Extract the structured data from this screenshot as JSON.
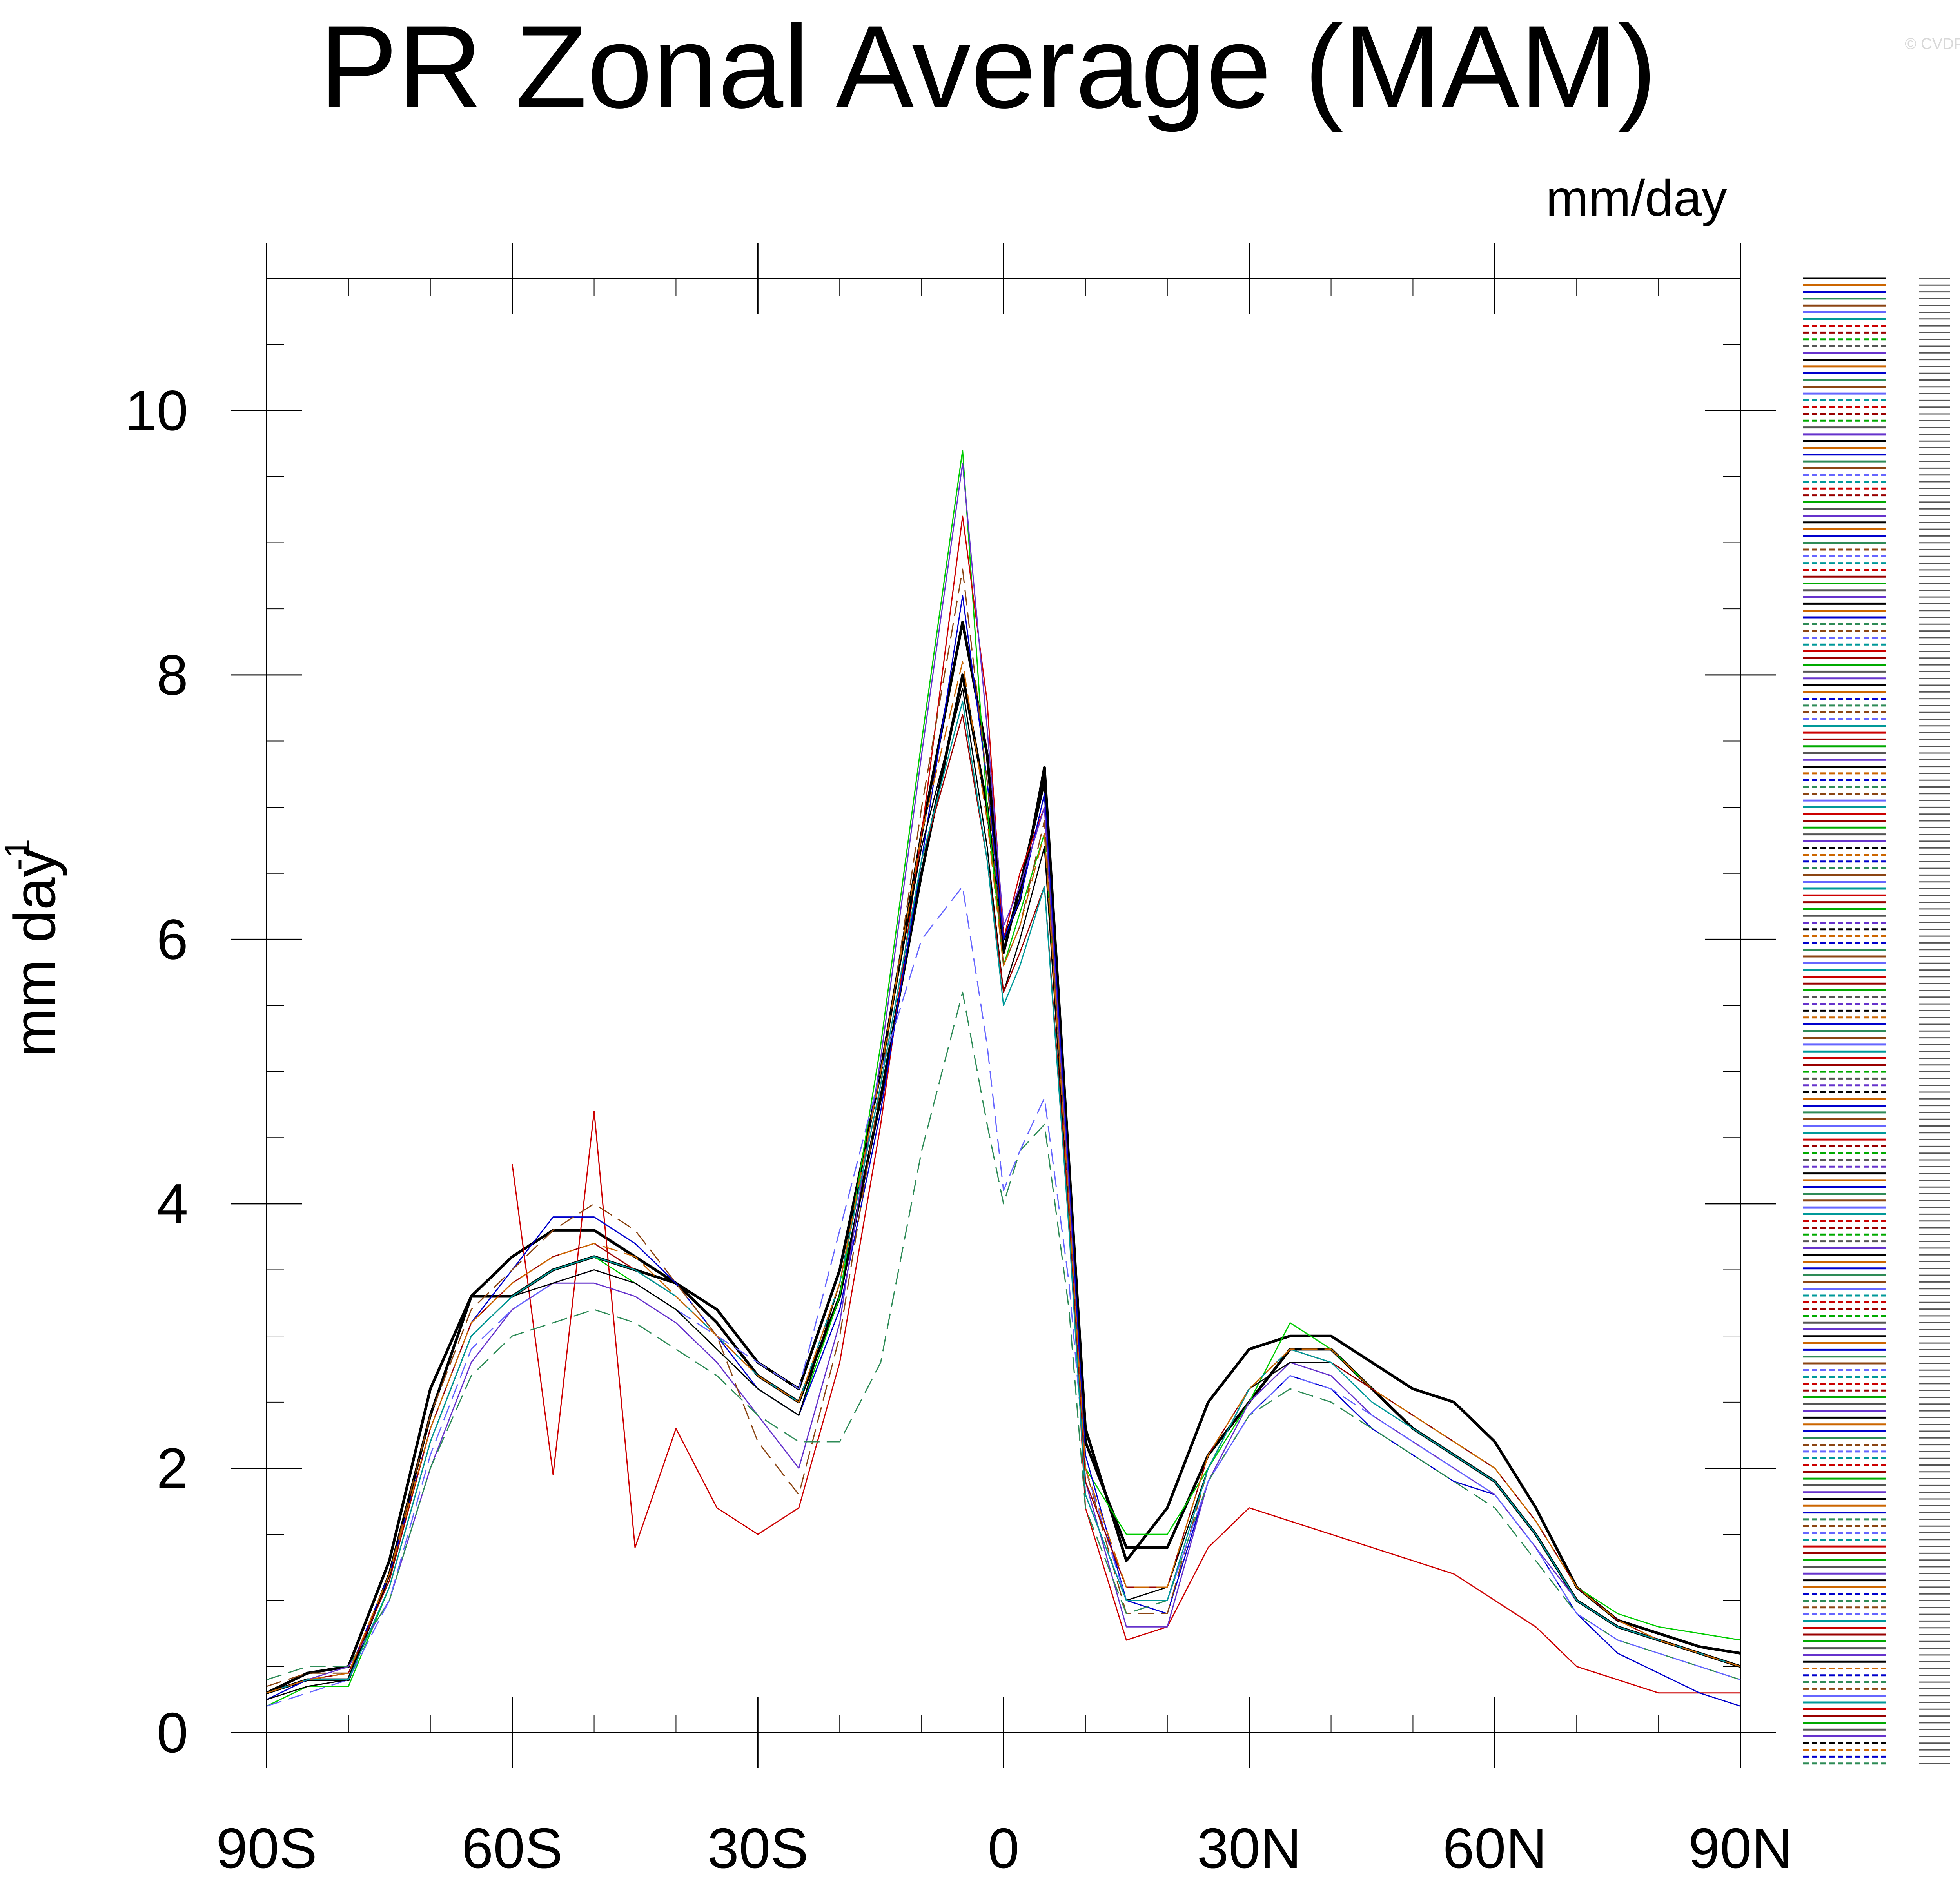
{
  "title": "PR Zonal Average (MAM)",
  "copyright": "© CVDP",
  "units_label": "mm/day",
  "chart_data": {
    "type": "line",
    "title": "PR Zonal Average (MAM)",
    "ylabel": "mm day",
    "ylabel_superscript": "-1",
    "xlabel": "",
    "xlim": [
      -90,
      90
    ],
    "ylim": [
      0,
      11
    ],
    "x_ticks": [
      {
        "value": -90,
        "label": "90S"
      },
      {
        "value": -60,
        "label": "60S"
      },
      {
        "value": -30,
        "label": "30S"
      },
      {
        "value": 0,
        "label": "0"
      },
      {
        "value": 30,
        "label": "30N"
      },
      {
        "value": 60,
        "label": "60N"
      },
      {
        "value": 90,
        "label": "90N"
      }
    ],
    "y_ticks": [
      {
        "value": 0,
        "label": "0"
      },
      {
        "value": 2,
        "label": "2"
      },
      {
        "value": 4,
        "label": "4"
      },
      {
        "value": 6,
        "label": "6"
      },
      {
        "value": 8,
        "label": "8"
      },
      {
        "value": 10,
        "label": "10"
      }
    ],
    "grid": false,
    "legend": "right",
    "x": [
      -90,
      -85,
      -80,
      -75,
      -70,
      -65,
      -60,
      -55,
      -50,
      -45,
      -40,
      -35,
      -30,
      -25,
      -20,
      -15,
      -10,
      -5,
      -2,
      0,
      2,
      5,
      8,
      10,
      15,
      20,
      25,
      30,
      35,
      40,
      45,
      50,
      55,
      60,
      65,
      70,
      75,
      80,
      85,
      90
    ],
    "series": [
      {
        "color": "#000000",
        "dashed": false,
        "heavy": true,
        "values": [
          0.3,
          0.4,
          0.4,
          1.2,
          2.4,
          3.3,
          3.6,
          3.8,
          3.8,
          3.6,
          3.4,
          3.1,
          2.7,
          2.5,
          3.3,
          4.8,
          6.5,
          8.0,
          7.0,
          5.9,
          6.4,
          7.2,
          4.2,
          2.2,
          1.4,
          1.4,
          2.1,
          2.5,
          2.9,
          2.9,
          2.6,
          2.3,
          2.1,
          1.9,
          1.5,
          1.0,
          0.8,
          0.7,
          0.6,
          0.5
        ]
      },
      {
        "color": "#000000",
        "dashed": false,
        "heavy": true,
        "values": [
          0.3,
          0.45,
          0.5,
          1.3,
          2.6,
          3.3,
          3.3,
          3.5,
          3.6,
          3.5,
          3.4,
          3.2,
          2.8,
          2.6,
          3.5,
          5.0,
          6.8,
          8.4,
          7.4,
          6.0,
          6.3,
          7.3,
          4.3,
          2.3,
          1.3,
          1.7,
          2.5,
          2.9,
          3.0,
          3.0,
          2.8,
          2.6,
          2.5,
          2.2,
          1.7,
          1.1,
          0.85,
          0.75,
          0.65,
          0.6
        ]
      },
      {
        "color": "#00cc00",
        "dashed": false,
        "heavy": false,
        "values": [
          0.2,
          0.35,
          0.35,
          1.1,
          2.2,
          3.0,
          3.3,
          3.5,
          3.6,
          3.4,
          3.2,
          2.9,
          2.6,
          2.4,
          3.3,
          5.2,
          7.5,
          9.7,
          7.0,
          5.8,
          6.2,
          6.8,
          4.1,
          2.0,
          1.5,
          1.5,
          2.0,
          2.5,
          3.1,
          2.9,
          2.6,
          2.4,
          2.2,
          2.0,
          1.6,
          1.1,
          0.9,
          0.8,
          0.75,
          0.7
        ]
      },
      {
        "color": "#cc0000",
        "dashed": false,
        "heavy": false,
        "values": [
          null,
          null,
          null,
          null,
          null,
          null,
          4.3,
          1.95,
          4.7,
          1.4,
          2.3,
          1.7,
          1.5,
          1.7,
          2.8,
          4.6,
          6.8,
          9.2,
          7.8,
          6.0,
          6.5,
          7.0,
          4.0,
          1.7,
          0.7,
          0.8,
          1.4,
          1.7,
          1.6,
          1.5,
          1.4,
          1.3,
          1.2,
          1.0,
          0.8,
          0.5,
          0.4,
          0.3,
          0.3,
          0.3
        ]
      },
      {
        "color": "#0000cc",
        "dashed": false,
        "heavy": false,
        "values": [
          0.25,
          0.4,
          0.45,
          1.2,
          2.3,
          3.1,
          3.5,
          3.9,
          3.9,
          3.7,
          3.4,
          3.0,
          2.6,
          2.4,
          3.2,
          4.7,
          6.6,
          8.6,
          7.2,
          6.0,
          6.3,
          7.1,
          4.2,
          2.1,
          1.0,
          0.9,
          1.9,
          2.4,
          2.7,
          2.6,
          2.3,
          2.1,
          1.9,
          1.8,
          1.4,
          0.9,
          0.6,
          0.45,
          0.3,
          0.2
        ]
      },
      {
        "color": "#6633cc",
        "dashed": false,
        "heavy": false,
        "values": [
          0.3,
          0.4,
          0.5,
          1.0,
          2.0,
          2.8,
          3.2,
          3.4,
          3.4,
          3.3,
          3.1,
          2.8,
          2.4,
          2.0,
          3.1,
          5.1,
          7.4,
          9.6,
          7.6,
          6.1,
          6.4,
          7.0,
          4.1,
          1.9,
          0.8,
          0.8,
          1.9,
          2.5,
          2.8,
          2.7,
          2.4,
          2.2,
          2.0,
          1.8,
          1.4,
          1.0,
          0.8,
          0.7,
          0.6,
          0.5
        ]
      },
      {
        "color": "#8b4513",
        "dashed": true,
        "heavy": false,
        "values": [
          0.35,
          0.45,
          0.45,
          1.2,
          2.4,
          3.2,
          3.5,
          3.8,
          4.0,
          3.8,
          3.4,
          3.0,
          2.2,
          1.8,
          3.0,
          4.9,
          7.0,
          8.8,
          7.2,
          5.8,
          6.1,
          6.9,
          4.0,
          2.0,
          0.9,
          0.9,
          2.0,
          2.6,
          2.9,
          2.8,
          2.6,
          2.3,
          2.1,
          1.9,
          1.5,
          1.0,
          0.8,
          0.7,
          0.6,
          0.5
        ]
      },
      {
        "color": "#2e8b57",
        "dashed": true,
        "heavy": false,
        "values": [
          0.4,
          0.5,
          0.5,
          1.0,
          2.0,
          2.7,
          3.0,
          3.1,
          3.2,
          3.1,
          2.9,
          2.7,
          2.4,
          2.2,
          2.2,
          2.8,
          4.4,
          5.6,
          4.6,
          4.0,
          4.4,
          4.6,
          3.2,
          1.7,
          0.9,
          1.0,
          1.9,
          2.4,
          2.6,
          2.5,
          2.3,
          2.1,
          1.9,
          1.7,
          1.3,
          0.9,
          0.7,
          0.6,
          0.5,
          0.4
        ]
      },
      {
        "color": "#6666ff",
        "dashed": true,
        "heavy": false,
        "values": [
          0.2,
          0.3,
          0.4,
          1.0,
          2.1,
          2.9,
          3.2,
          3.4,
          3.5,
          3.4,
          3.2,
          3.0,
          2.8,
          2.6,
          3.8,
          5.0,
          6.0,
          6.4,
          5.2,
          4.1,
          4.4,
          4.8,
          3.4,
          2.0,
          1.0,
          1.0,
          1.9,
          2.4,
          2.7,
          2.6,
          2.4,
          2.2,
          2.0,
          1.8,
          1.4,
          0.9,
          0.7,
          0.6,
          0.5,
          0.4
        ]
      },
      {
        "color": "#000000",
        "dashed": false,
        "heavy": false,
        "values": [
          0.25,
          0.35,
          0.4,
          1.1,
          2.2,
          3.0,
          3.3,
          3.4,
          3.5,
          3.4,
          3.2,
          2.9,
          2.6,
          2.4,
          3.4,
          5.0,
          6.7,
          7.9,
          6.7,
          5.6,
          6.0,
          6.7,
          3.9,
          1.8,
          1.0,
          1.1,
          2.0,
          2.6,
          2.8,
          2.8,
          2.6,
          2.3,
          2.1,
          1.9,
          1.5,
          1.0,
          0.8,
          0.7,
          0.6,
          0.5
        ]
      },
      {
        "color": "#990000",
        "dashed": false,
        "heavy": false,
        "values": [
          0.3,
          0.4,
          0.45,
          1.15,
          2.3,
          3.1,
          3.4,
          3.6,
          3.7,
          3.5,
          3.3,
          3.0,
          2.7,
          2.5,
          3.4,
          4.9,
          6.6,
          7.7,
          6.6,
          5.6,
          5.9,
          6.4,
          3.9,
          1.9,
          1.1,
          1.1,
          2.1,
          2.6,
          2.9,
          2.8,
          2.6,
          2.4,
          2.2,
          2.0,
          1.6,
          1.1,
          0.85,
          0.7,
          0.6,
          0.5
        ]
      },
      {
        "color": "#009999",
        "dashed": false,
        "heavy": false,
        "values": [
          0.3,
          0.4,
          0.4,
          1.1,
          2.2,
          3.0,
          3.3,
          3.5,
          3.6,
          3.5,
          3.3,
          3.0,
          2.7,
          2.5,
          3.4,
          4.9,
          6.6,
          7.8,
          6.6,
          5.5,
          5.8,
          6.4,
          3.8,
          1.8,
          1.0,
          1.0,
          2.0,
          2.6,
          2.9,
          2.8,
          2.5,
          2.3,
          2.1,
          1.9,
          1.5,
          1.0,
          0.8,
          0.7,
          0.6,
          0.5
        ]
      },
      {
        "color": "#cc6600",
        "dashed": true,
        "heavy": false,
        "values": [
          0.3,
          0.4,
          0.45,
          1.2,
          2.3,
          3.1,
          3.4,
          3.6,
          3.7,
          3.6,
          3.3,
          3.0,
          2.7,
          2.5,
          3.4,
          5.0,
          6.8,
          8.1,
          6.9,
          5.8,
          6.1,
          6.8,
          4.0,
          2.0,
          1.1,
          1.1,
          2.1,
          2.6,
          2.9,
          2.9,
          2.6,
          2.4,
          2.2,
          2.0,
          1.6,
          1.1,
          0.85,
          0.7,
          0.6,
          0.5
        ]
      }
    ]
  },
  "legend": {
    "label_color": "#555555"
  }
}
